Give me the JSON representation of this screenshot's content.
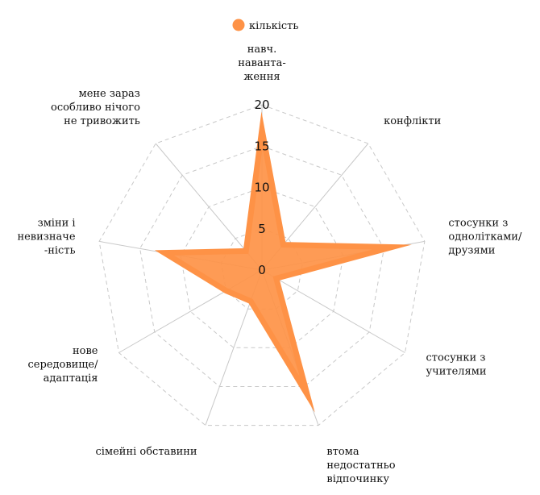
{
  "chart_data": {
    "type": "radar",
    "legend": {
      "position": "top-center",
      "entries": [
        "кількість"
      ]
    },
    "categories": [
      [
        "навч.",
        "наванта-",
        "ження"
      ],
      [
        "конфлікти"
      ],
      [
        "стосунки з",
        "однолітками/",
        "друзями"
      ],
      [
        "стосунки з",
        "учителями"
      ],
      [
        "втома",
        "недостатньо",
        "відпочинку"
      ],
      [
        "сімейні обставини"
      ],
      [
        "нове",
        "середовище/",
        "адаптація"
      ],
      [
        "зміни і",
        "невизначе",
        "-ність"
      ],
      [
        "мене зараз",
        "особливо нічого",
        "не тривожить"
      ]
    ],
    "series": [
      {
        "name": "кількість",
        "color": "#fe9246",
        "values": [
          17,
          4,
          16,
          2,
          16,
          4,
          5,
          12,
          3
        ]
      }
    ],
    "rlim": [
      0,
      20
    ],
    "ticks": [
      0,
      5,
      10,
      15,
      20
    ],
    "grid": true,
    "grid_color": "#c8c8c8"
  }
}
